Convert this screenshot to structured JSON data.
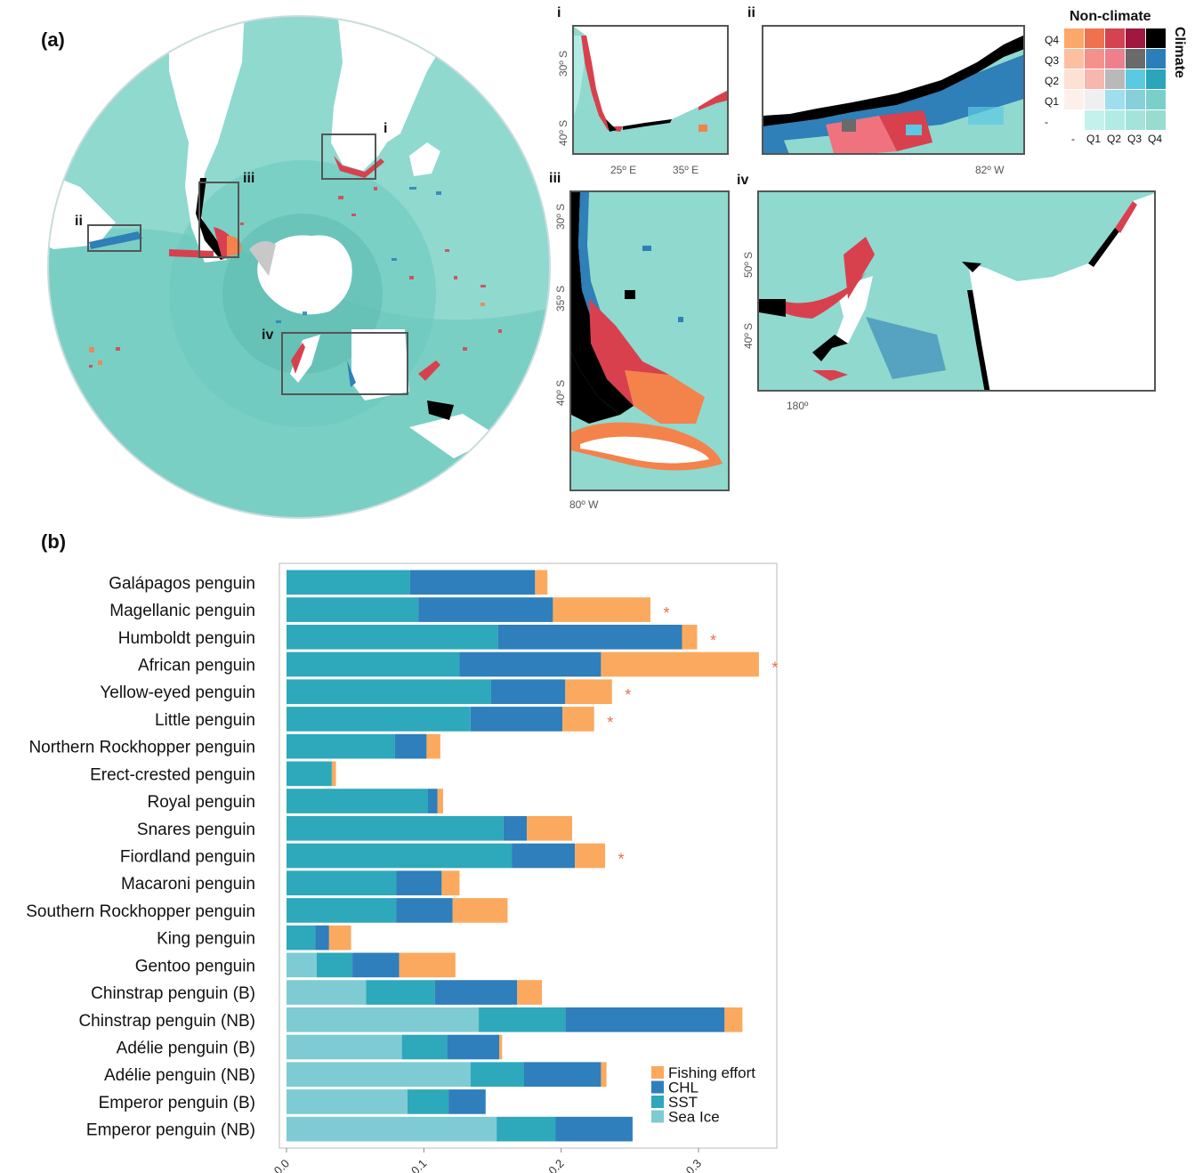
{
  "panels": {
    "a_label": "(a)",
    "b_label": "(b)"
  },
  "map": {
    "boxes": [
      "i",
      "ii",
      "iii",
      "iv"
    ],
    "colors": {
      "ocean_light": "#8fd9cf",
      "ocean_mid": "#6cc8bd",
      "ocean_deep": "#58b6aa",
      "land": "#ffffff",
      "ice": "#c8c8c8",
      "hotspot_red": "#d9404e",
      "hotspot_orange": "#f4824b",
      "climate_blue": "#2f7fb8",
      "black": "#000000"
    }
  },
  "insets": {
    "i": {
      "label": "i",
      "lat_ticks": [
        "30º S",
        "40º S"
      ],
      "lon_ticks": [
        "25º E",
        "35º E"
      ]
    },
    "ii": {
      "label": "ii",
      "lon_ticks": [
        "82º W"
      ]
    },
    "iii": {
      "label": "iii",
      "lat_ticks": [
        "30º S",
        "35º S",
        "40º S"
      ],
      "lon_ticks": [
        "80º W"
      ]
    },
    "iv": {
      "label": "iv",
      "lat_ticks": [
        "50º S",
        "40º S"
      ],
      "lon_ticks": [
        "180º"
      ]
    }
  },
  "bivariate_legend": {
    "title_x": "Non-climate",
    "title_y": "Climate",
    "x_labels": [
      "-",
      "Q1",
      "Q2",
      "Q3",
      "Q4"
    ],
    "y_labels": [
      "Q4",
      "Q3",
      "Q2",
      "Q1",
      "-"
    ],
    "grid": [
      [
        "#fba86a",
        "#f0714f",
        "#d4434f",
        "#a0173f",
        "#000000"
      ],
      [
        "#fcc0a0",
        "#f6908a",
        "#f07f8d",
        "#6a6a6a",
        "#2a7fbb"
      ],
      [
        "#fde1d3",
        "#f7b7ae",
        "#b9b9b9",
        "#5cc9e3",
        "#2aa5ba"
      ],
      [
        "#fdf0ea",
        "#efefef",
        "#9fdeec",
        "#86d0dc",
        "#7bcfca"
      ],
      [
        "#ffffff",
        "#c5f1ec",
        "#b1ece4",
        "#a4e3d9",
        "#97dccf"
      ]
    ]
  },
  "chart_data": {
    "type": "bar",
    "orientation": "horizontal",
    "stacked": true,
    "xlim": [
      0,
      0.35
    ],
    "xticks": [
      "0.0",
      "0.1",
      "0.2",
      "0.3"
    ],
    "categories": [
      "Galápagos penguin",
      "Magellanic penguin",
      "Humboldt penguin",
      "African penguin",
      "Yellow-eyed penguin",
      "Little penguin",
      "Northern Rockhopper penguin",
      "Erect-crested penguin",
      "Royal penguin",
      "Snares penguin",
      "Fiordland penguin",
      "Macaroni penguin",
      "Southern Rockhopper penguin",
      "King penguin",
      "Gentoo penguin",
      "Chinstrap penguin (B)",
      "Chinstrap penguin (NB)",
      "Adélie penguin (B)",
      "Adélie penguin (NB)",
      "Emperor penguin (B)",
      "Emperor penguin (NB)"
    ],
    "series": [
      {
        "name": "Sea Ice",
        "color": "#7ecbd3",
        "values": [
          0,
          0,
          0,
          0,
          0,
          0,
          0,
          0,
          0,
          0,
          0,
          0,
          0,
          0,
          0.022,
          0.058,
          0.14,
          0.084,
          0.134,
          0.088,
          0.153
        ]
      },
      {
        "name": "SST",
        "color": "#2ea8bb",
        "values": [
          0.09,
          0.096,
          0.154,
          0.126,
          0.149,
          0.134,
          0.079,
          0.033,
          0.103,
          0.158,
          0.164,
          0.08,
          0.08,
          0.021,
          0.026,
          0.05,
          0.063,
          0.033,
          0.039,
          0.03,
          0.043
        ]
      },
      {
        "name": "CHL",
        "color": "#2e7fbb",
        "values": [
          0.091,
          0.098,
          0.134,
          0.103,
          0.054,
          0.067,
          0.023,
          0,
          0.007,
          0.017,
          0.046,
          0.033,
          0.041,
          0.01,
          0.034,
          0.06,
          0.116,
          0.038,
          0.056,
          0.027,
          0.056
        ]
      },
      {
        "name": "Fishing effort",
        "color": "#fba95e",
        "values": [
          0.009,
          0.071,
          0.011,
          0.115,
          0.034,
          0.023,
          0.01,
          0.003,
          0.004,
          0.033,
          0.022,
          0.013,
          0.04,
          0.016,
          0.041,
          0.018,
          0.013,
          0.002,
          0.004,
          0,
          0
        ]
      }
    ],
    "significant": [
      false,
      true,
      true,
      true,
      true,
      true,
      false,
      false,
      false,
      false,
      true,
      false,
      false,
      false,
      false,
      false,
      false,
      false,
      false,
      false,
      false
    ],
    "significance_mark": "*",
    "legend_order": [
      "Fishing effort",
      "CHL",
      "SST",
      "Sea Ice"
    ],
    "legend_placement": "bottom-right"
  }
}
